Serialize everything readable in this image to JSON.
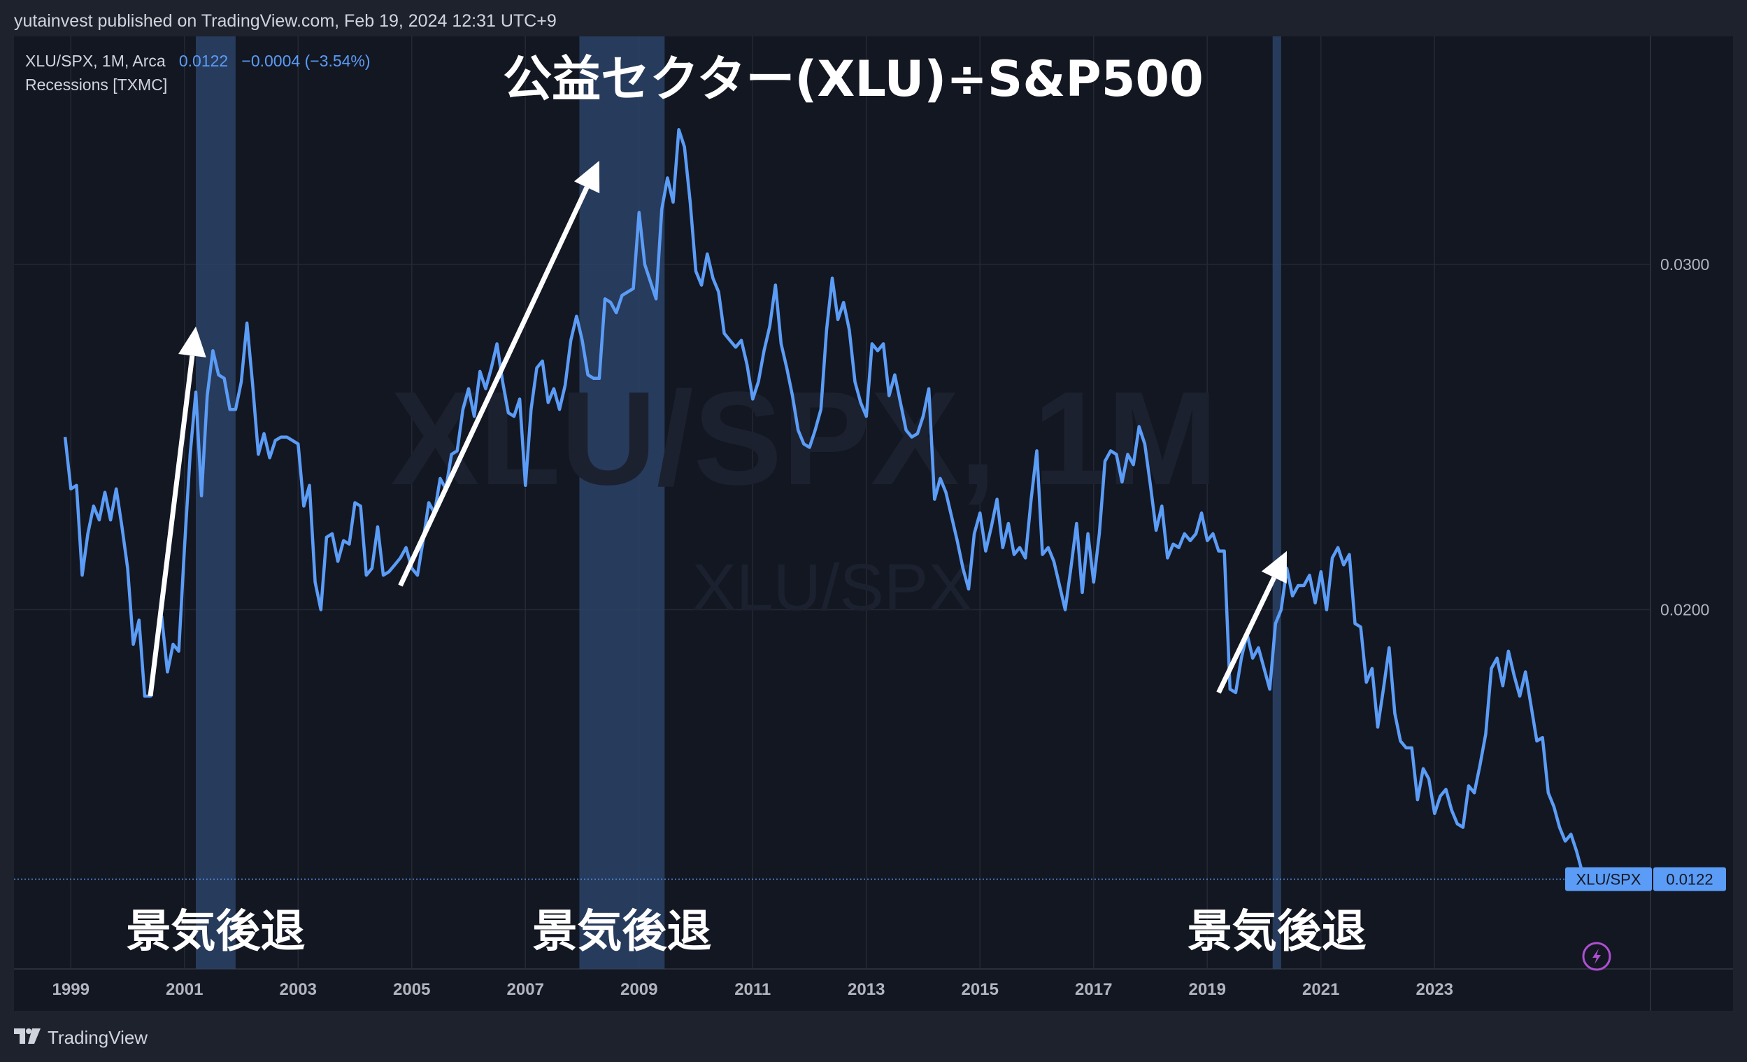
{
  "header": {
    "published_text": "yutainvest published on TradingView.com, Feb 19, 2024 12:31 UTC+9"
  },
  "legend": {
    "symbol": "XLU/SPX, 1M, Arca",
    "last": "0.0122",
    "change": "−0.0004",
    "change_pct": "(−3.54%)",
    "indicator": "Recessions [TXMC]"
  },
  "footer": {
    "brand": "TradingView",
    "logo_icon": "tradingview-logo-icon"
  },
  "colors": {
    "background": "#131722",
    "line": "#5b9cf6",
    "recession_band": "#2b4266",
    "arrow": "#ffffff",
    "grid": "#242832",
    "text": "#d1d4dc"
  },
  "chart_data": {
    "type": "line",
    "title": "公益セクター(XLU)÷S&P500",
    "watermark": "XLU/SPX, 1M",
    "watermark_sub": "XLU/SPX",
    "series": [
      {
        "name": "XLU/SPX",
        "points": [
          [
            1998.9,
            0.025
          ],
          [
            1999.0,
            0.0235
          ],
          [
            1999.1,
            0.0236
          ],
          [
            1999.2,
            0.021
          ],
          [
            1999.3,
            0.0222
          ],
          [
            1999.4,
            0.023
          ],
          [
            1999.5,
            0.0226
          ],
          [
            1999.6,
            0.0234
          ],
          [
            1999.7,
            0.0226
          ],
          [
            1999.8,
            0.0235
          ],
          [
            1999.9,
            0.0224
          ],
          [
            2000.0,
            0.0212
          ],
          [
            2000.1,
            0.019
          ],
          [
            2000.2,
            0.0197
          ],
          [
            2000.3,
            0.0175
          ],
          [
            2000.4,
            0.0175
          ],
          [
            2000.5,
            0.019
          ],
          [
            2000.6,
            0.0198
          ],
          [
            2000.7,
            0.0182
          ],
          [
            2000.8,
            0.019
          ],
          [
            2000.9,
            0.0188
          ],
          [
            2001.0,
            0.0218
          ],
          [
            2001.1,
            0.0245
          ],
          [
            2001.2,
            0.0263
          ],
          [
            2001.3,
            0.0233
          ],
          [
            2001.4,
            0.0262
          ],
          [
            2001.5,
            0.0275
          ],
          [
            2001.6,
            0.0268
          ],
          [
            2001.7,
            0.0267
          ],
          [
            2001.8,
            0.0258
          ],
          [
            2001.9,
            0.0258
          ],
          [
            2002.0,
            0.0266
          ],
          [
            2002.1,
            0.0283
          ],
          [
            2002.2,
            0.0265
          ],
          [
            2002.3,
            0.0245
          ],
          [
            2002.4,
            0.0251
          ],
          [
            2002.5,
            0.0244
          ],
          [
            2002.6,
            0.0249
          ],
          [
            2002.7,
            0.025
          ],
          [
            2002.8,
            0.025
          ],
          [
            2002.9,
            0.0249
          ],
          [
            2003.0,
            0.0248
          ],
          [
            2003.1,
            0.023
          ],
          [
            2003.2,
            0.0236
          ],
          [
            2003.3,
            0.0208
          ],
          [
            2003.4,
            0.02
          ],
          [
            2003.5,
            0.0221
          ],
          [
            2003.6,
            0.0222
          ],
          [
            2003.7,
            0.0214
          ],
          [
            2003.8,
            0.022
          ],
          [
            2003.9,
            0.0219
          ],
          [
            2004.0,
            0.0231
          ],
          [
            2004.1,
            0.023
          ],
          [
            2004.2,
            0.021
          ],
          [
            2004.3,
            0.0212
          ],
          [
            2004.4,
            0.0224
          ],
          [
            2004.5,
            0.021
          ],
          [
            2004.6,
            0.0211
          ],
          [
            2004.7,
            0.0213
          ],
          [
            2004.8,
            0.0215
          ],
          [
            2004.9,
            0.0218
          ],
          [
            2005.0,
            0.0212
          ],
          [
            2005.1,
            0.021
          ],
          [
            2005.2,
            0.022
          ],
          [
            2005.3,
            0.0231
          ],
          [
            2005.4,
            0.0228
          ],
          [
            2005.5,
            0.0238
          ],
          [
            2005.6,
            0.0235
          ],
          [
            2005.7,
            0.0245
          ],
          [
            2005.8,
            0.0246
          ],
          [
            2005.9,
            0.0258
          ],
          [
            2006.0,
            0.0264
          ],
          [
            2006.1,
            0.0256
          ],
          [
            2006.2,
            0.0269
          ],
          [
            2006.3,
            0.0264
          ],
          [
            2006.4,
            0.027
          ],
          [
            2006.5,
            0.0277
          ],
          [
            2006.6,
            0.0266
          ],
          [
            2006.7,
            0.0257
          ],
          [
            2006.8,
            0.0256
          ],
          [
            2006.9,
            0.0261
          ],
          [
            2007.0,
            0.0236
          ],
          [
            2007.1,
            0.0258
          ],
          [
            2007.2,
            0.027
          ],
          [
            2007.3,
            0.0272
          ],
          [
            2007.4,
            0.026
          ],
          [
            2007.5,
            0.0264
          ],
          [
            2007.6,
            0.0258
          ],
          [
            2007.7,
            0.0265
          ],
          [
            2007.8,
            0.0278
          ],
          [
            2007.9,
            0.0285
          ],
          [
            2008.0,
            0.0278
          ],
          [
            2008.1,
            0.0268
          ],
          [
            2008.2,
            0.0267
          ],
          [
            2008.3,
            0.0267
          ],
          [
            2008.4,
            0.029
          ],
          [
            2008.5,
            0.0289
          ],
          [
            2008.6,
            0.0286
          ],
          [
            2008.7,
            0.0291
          ],
          [
            2008.8,
            0.0292
          ],
          [
            2008.9,
            0.0293
          ],
          [
            2009.0,
            0.0315
          ],
          [
            2009.1,
            0.03
          ],
          [
            2009.2,
            0.0295
          ],
          [
            2009.3,
            0.029
          ],
          [
            2009.4,
            0.0316
          ],
          [
            2009.5,
            0.0325
          ],
          [
            2009.6,
            0.0318
          ],
          [
            2009.7,
            0.0339
          ],
          [
            2009.8,
            0.0334
          ],
          [
            2009.9,
            0.0318
          ],
          [
            2010.0,
            0.0298
          ],
          [
            2010.1,
            0.0294
          ],
          [
            2010.2,
            0.0303
          ],
          [
            2010.3,
            0.0296
          ],
          [
            2010.4,
            0.0292
          ],
          [
            2010.5,
            0.028
          ],
          [
            2010.6,
            0.0278
          ],
          [
            2010.7,
            0.0276
          ],
          [
            2010.8,
            0.0278
          ],
          [
            2010.9,
            0.0271
          ],
          [
            2011.0,
            0.0261
          ],
          [
            2011.1,
            0.0266
          ],
          [
            2011.2,
            0.0275
          ],
          [
            2011.3,
            0.0282
          ],
          [
            2011.4,
            0.0294
          ],
          [
            2011.5,
            0.0277
          ],
          [
            2011.6,
            0.027
          ],
          [
            2011.7,
            0.0262
          ],
          [
            2011.8,
            0.0252
          ],
          [
            2011.9,
            0.0248
          ],
          [
            2012.0,
            0.0247
          ],
          [
            2012.1,
            0.0252
          ],
          [
            2012.2,
            0.0258
          ],
          [
            2012.3,
            0.0281
          ],
          [
            2012.4,
            0.0296
          ],
          [
            2012.5,
            0.0284
          ],
          [
            2012.6,
            0.0289
          ],
          [
            2012.7,
            0.0281
          ],
          [
            2012.8,
            0.0266
          ],
          [
            2012.9,
            0.026
          ],
          [
            2013.0,
            0.0256
          ],
          [
            2013.1,
            0.0277
          ],
          [
            2013.2,
            0.0275
          ],
          [
            2013.3,
            0.0277
          ],
          [
            2013.4,
            0.0262
          ],
          [
            2013.5,
            0.0268
          ],
          [
            2013.6,
            0.026
          ],
          [
            2013.7,
            0.0252
          ],
          [
            2013.8,
            0.025
          ],
          [
            2013.9,
            0.0251
          ],
          [
            2014.0,
            0.0256
          ],
          [
            2014.1,
            0.0264
          ],
          [
            2014.2,
            0.0232
          ],
          [
            2014.3,
            0.0238
          ],
          [
            2014.4,
            0.0234
          ],
          [
            2014.5,
            0.0227
          ],
          [
            2014.6,
            0.022
          ],
          [
            2014.7,
            0.0212
          ],
          [
            2014.8,
            0.0206
          ],
          [
            2014.9,
            0.0222
          ],
          [
            2015.0,
            0.0228
          ],
          [
            2015.1,
            0.0217
          ],
          [
            2015.2,
            0.0224
          ],
          [
            2015.3,
            0.0232
          ],
          [
            2015.4,
            0.0218
          ],
          [
            2015.5,
            0.0225
          ],
          [
            2015.6,
            0.0216
          ],
          [
            2015.7,
            0.0218
          ],
          [
            2015.8,
            0.0215
          ],
          [
            2015.9,
            0.0232
          ],
          [
            2016.0,
            0.0246
          ],
          [
            2016.1,
            0.0216
          ],
          [
            2016.2,
            0.0218
          ],
          [
            2016.3,
            0.0214
          ],
          [
            2016.4,
            0.0207
          ],
          [
            2016.5,
            0.02
          ],
          [
            2016.6,
            0.0212
          ],
          [
            2016.7,
            0.0225
          ],
          [
            2016.8,
            0.0205
          ],
          [
            2016.9,
            0.0222
          ],
          [
            2017.0,
            0.0208
          ],
          [
            2017.1,
            0.0222
          ],
          [
            2017.2,
            0.0243
          ],
          [
            2017.3,
            0.0246
          ],
          [
            2017.4,
            0.0245
          ],
          [
            2017.5,
            0.0237
          ],
          [
            2017.6,
            0.0245
          ],
          [
            2017.7,
            0.0242
          ],
          [
            2017.8,
            0.0253
          ],
          [
            2017.9,
            0.0248
          ],
          [
            2018.0,
            0.0236
          ],
          [
            2018.1,
            0.0223
          ],
          [
            2018.2,
            0.023
          ],
          [
            2018.3,
            0.0215
          ],
          [
            2018.4,
            0.0219
          ],
          [
            2018.5,
            0.0218
          ],
          [
            2018.6,
            0.0222
          ],
          [
            2018.7,
            0.022
          ],
          [
            2018.8,
            0.0222
          ],
          [
            2018.9,
            0.0228
          ],
          [
            2019.0,
            0.022
          ],
          [
            2019.1,
            0.0222
          ],
          [
            2019.2,
            0.0217
          ],
          [
            2019.3,
            0.0217
          ],
          [
            2019.4,
            0.0177
          ],
          [
            2019.5,
            0.0176
          ],
          [
            2019.6,
            0.0186
          ],
          [
            2019.7,
            0.0193
          ],
          [
            2019.8,
            0.0186
          ],
          [
            2019.9,
            0.0189
          ],
          [
            2020.0,
            0.0183
          ],
          [
            2020.1,
            0.0177
          ],
          [
            2020.2,
            0.0196
          ],
          [
            2020.3,
            0.02
          ],
          [
            2020.4,
            0.0212
          ],
          [
            2020.5,
            0.0204
          ],
          [
            2020.6,
            0.0207
          ],
          [
            2020.7,
            0.0207
          ],
          [
            2020.8,
            0.021
          ],
          [
            2020.9,
            0.0202
          ],
          [
            2021.0,
            0.0211
          ],
          [
            2021.1,
            0.02
          ],
          [
            2021.2,
            0.0215
          ],
          [
            2021.3,
            0.0218
          ],
          [
            2021.4,
            0.0213
          ],
          [
            2021.5,
            0.0216
          ],
          [
            2021.6,
            0.0196
          ],
          [
            2021.7,
            0.0195
          ],
          [
            2021.8,
            0.0179
          ],
          [
            2021.9,
            0.0183
          ],
          [
            2022.0,
            0.0166
          ],
          [
            2022.1,
            0.0177
          ],
          [
            2022.2,
            0.0189
          ],
          [
            2022.3,
            0.017
          ],
          [
            2022.4,
            0.0162
          ],
          [
            2022.5,
            0.016
          ],
          [
            2022.6,
            0.016
          ],
          [
            2022.7,
            0.0145
          ],
          [
            2022.8,
            0.0154
          ],
          [
            2022.9,
            0.0151
          ],
          [
            2023.0,
            0.0141
          ],
          [
            2023.1,
            0.0146
          ],
          [
            2023.2,
            0.0148
          ],
          [
            2023.3,
            0.0142
          ],
          [
            2023.4,
            0.0138
          ],
          [
            2023.5,
            0.0137
          ],
          [
            2023.6,
            0.0149
          ],
          [
            2023.7,
            0.0147
          ],
          [
            2023.8,
            0.0155
          ],
          [
            2023.9,
            0.0164
          ],
          [
            2024.0,
            0.0183
          ],
          [
            2024.1,
            0.0186
          ],
          [
            2024.2,
            0.0178
          ],
          [
            2024.3,
            0.0188
          ],
          [
            2024.4,
            0.0181
          ],
          [
            2024.5,
            0.0175
          ],
          [
            2024.6,
            0.0182
          ],
          [
            2024.7,
            0.0172
          ],
          [
            2024.8,
            0.0162
          ],
          [
            2024.9,
            0.0163
          ],
          [
            2025.0,
            0.0147
          ],
          [
            2025.1,
            0.0143
          ],
          [
            2025.2,
            0.0137
          ],
          [
            2025.3,
            0.0133
          ],
          [
            2025.4,
            0.0135
          ],
          [
            2025.5,
            0.013
          ],
          [
            2025.6,
            0.0124
          ],
          [
            2025.7,
            0.0122
          ]
        ]
      }
    ],
    "x_ticks": [
      "1999",
      "2001",
      "2003",
      "2005",
      "2007",
      "2009",
      "2011",
      "2013",
      "2015",
      "2017",
      "2019",
      "2021",
      "2023"
    ],
    "x_tick_values": [
      1999,
      2001,
      2003,
      2005,
      2007,
      2009,
      2011,
      2013,
      2015,
      2017,
      2019,
      2021,
      2023
    ],
    "y_ticks": [
      "0.0300",
      "0.0200"
    ],
    "y_tick_values": [
      0.03,
      0.02
    ],
    "xlim": [
      1998.0,
      2026.8
    ],
    "ylim": [
      0.0096,
      0.0366
    ],
    "recessions": [
      {
        "start": 2001.2,
        "end": 2001.9,
        "label": "景気後退"
      },
      {
        "start": 2007.95,
        "end": 2009.45,
        "label": "景気後退"
      },
      {
        "start": 2020.15,
        "end": 2020.3,
        "label": "景気後退"
      }
    ],
    "arrows": [
      {
        "from": [
          2000.4,
          0.0175
        ],
        "to": [
          2001.2,
          0.0282
        ]
      },
      {
        "from": [
          2004.8,
          0.0207
        ],
        "to": [
          2008.3,
          0.033
        ]
      },
      {
        "from": [
          2019.2,
          0.0176
        ],
        "to": [
          2020.4,
          0.0217
        ]
      }
    ],
    "last_value_label": "0.0122",
    "last_series_label": "XLU/SPX",
    "grid": true
  }
}
